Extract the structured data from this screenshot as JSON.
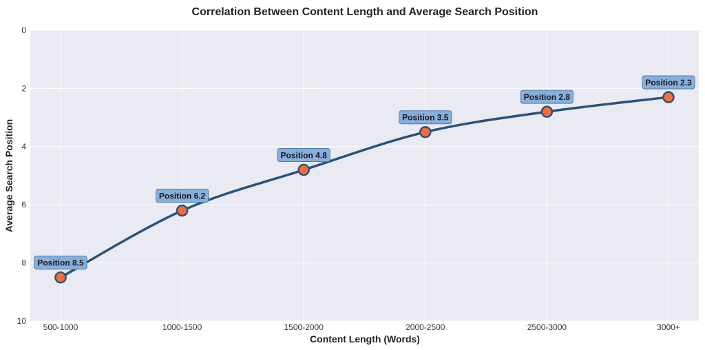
{
  "chart_data": {
    "type": "line",
    "title": "Correlation Between Content Length and Average Search Position",
    "xlabel": "Content Length (Words)",
    "ylabel": "Average Search Position",
    "categories": [
      "500-1000",
      "1000-1500",
      "1500-2000",
      "2000-2500",
      "2500-3000",
      "3000+"
    ],
    "values": [
      8.5,
      6.2,
      4.8,
      3.5,
      2.8,
      2.3
    ],
    "data_labels": [
      "Position 8.5",
      "Position 6.2",
      "Position 4.8",
      "Position 3.5",
      "Position 2.8",
      "Position 2.3"
    ],
    "ylim": [
      10,
      0
    ],
    "y_inverted": true,
    "yticks": [
      "0",
      "2",
      "4",
      "6",
      "8",
      "10"
    ],
    "grid": true,
    "colors": {
      "line": "#26537f",
      "marker": "#ff6b35",
      "label_bg": "#87afdc",
      "label_border": "#4a7db3",
      "plot_bg": "#eaeaf2"
    }
  }
}
